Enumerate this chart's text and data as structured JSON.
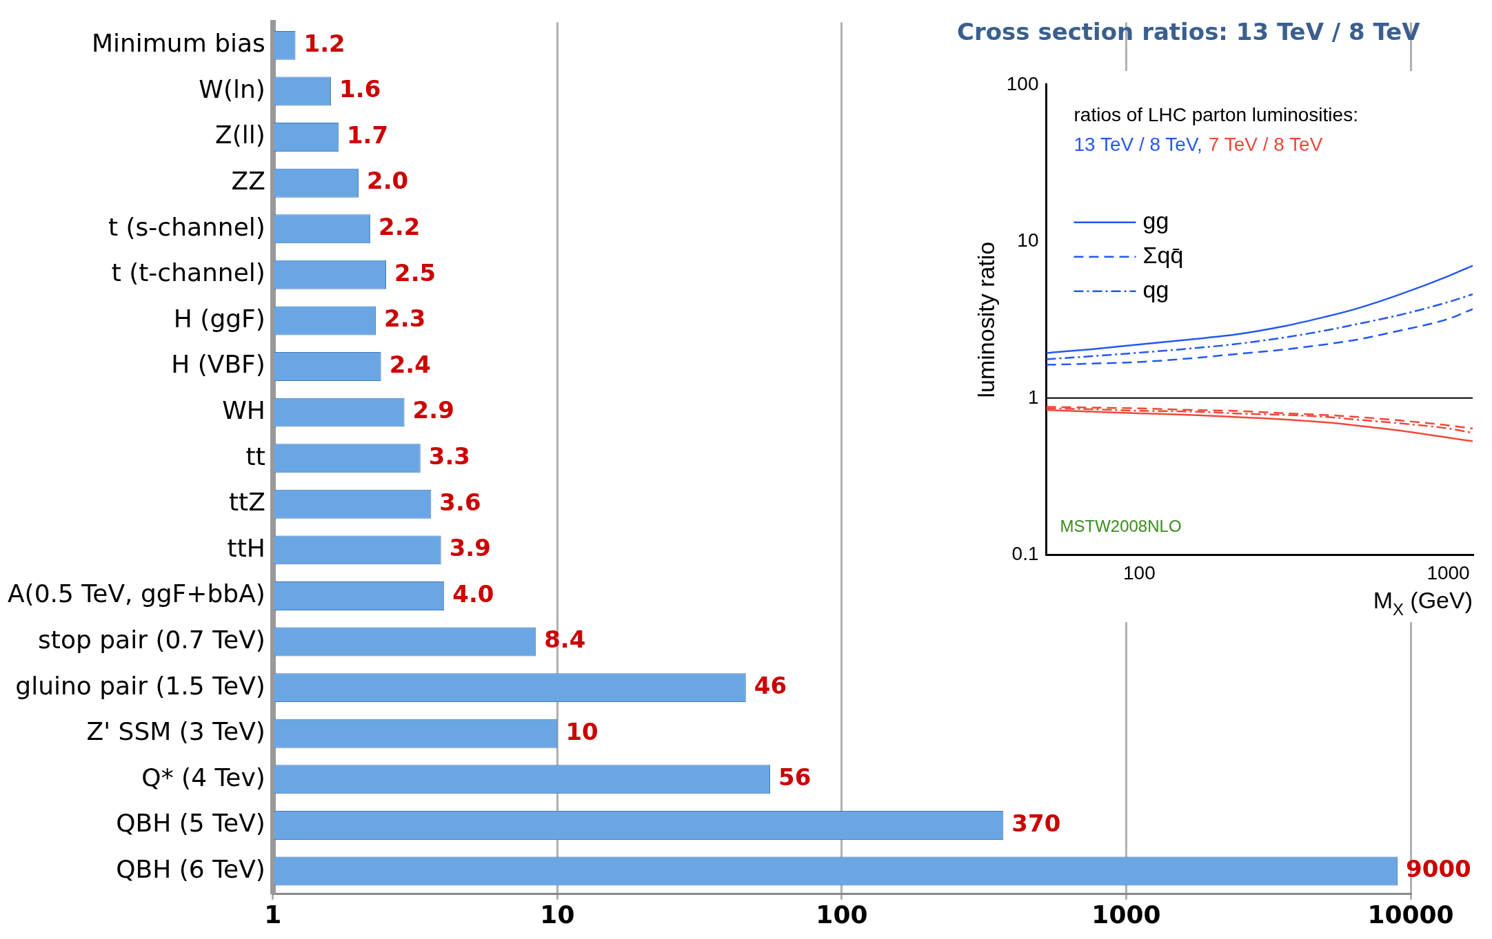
{
  "chart_data": [
    {
      "type": "bar",
      "orientation": "horizontal",
      "title": "Cross section ratios: 13 TeV / 8 TeV",
      "categories": [
        "Minimum bias",
        "W(ln)",
        "Z(ll)",
        "ZZ",
        "t (s-channel)",
        "t (t-channel)",
        "H (ggF)",
        "H (VBF)",
        "WH",
        "tt",
        "ttZ",
        "ttH",
        "A(0.5 TeV, ggF+bbA)",
        "stop pair (0.7 TeV)",
        "gluino pair (1.5 TeV)",
        "Z' SSM (3 TeV)",
        "Q* (4 Tev)",
        "QBH (5 TeV)",
        "QBH (6 TeV)"
      ],
      "values": [
        1.2,
        1.6,
        1.7,
        2.0,
        2.2,
        2.5,
        2.3,
        2.4,
        2.9,
        3.3,
        3.6,
        3.9,
        4.0,
        8.4,
        46,
        10,
        56,
        370,
        9000
      ],
      "value_labels": [
        "1.2",
        "1.6",
        "1.7",
        "2.0",
        "2.2",
        "2.5",
        "2.3",
        "2.4",
        "2.9",
        "3.3",
        "3.6",
        "3.9",
        "4.0",
        "8.4",
        "46",
        "10",
        "56",
        "370",
        "9000"
      ],
      "color": "#6aa6e4",
      "log": "x",
      "xlim": [
        1,
        10000
      ],
      "xticks": [
        1,
        10,
        100,
        1000,
        10000
      ],
      "grid": "x",
      "legend": false
    },
    {
      "type": "line",
      "xlabel": "M$_{X}$ (GeV)",
      "ylabel": "luminosity ratio",
      "log": "xy",
      "x": [
        50,
        70,
        100,
        150,
        200,
        300,
        400,
        500,
        700,
        1000,
        1200
      ],
      "xlim": [
        50,
        1200
      ],
      "xticks": [
        100,
        1000
      ],
      "ylim": [
        0.1,
        100
      ],
      "yticks": [
        0.1,
        1,
        10,
        100
      ],
      "series": [
        {
          "name": "gg",
          "color": "#2457f0",
          "line_style": "solid",
          "values": [
            1.94,
            2.05,
            2.2,
            2.38,
            2.53,
            2.9,
            3.3,
            3.7,
            4.6,
            6.0,
            7.0
          ]
        },
        {
          "name": "Σqq̄",
          "color": "#2457f0",
          "line_style": "dashed",
          "values": [
            1.63,
            1.66,
            1.7,
            1.8,
            1.9,
            2.05,
            2.2,
            2.35,
            2.7,
            3.2,
            3.7
          ]
        },
        {
          "name": "qg",
          "color": "#2457f0",
          "line_style": "dotted",
          "values": [
            1.77,
            1.85,
            1.95,
            2.08,
            2.2,
            2.45,
            2.7,
            2.95,
            3.4,
            4.1,
            4.6
          ]
        },
        {
          "color": "#f0483a",
          "line_style": "solid",
          "values": [
            0.84,
            0.82,
            0.8,
            0.78,
            0.76,
            0.73,
            0.7,
            0.67,
            0.62,
            0.56,
            0.53
          ]
        },
        {
          "color": "#f0483a",
          "line_style": "dashed",
          "values": [
            0.88,
            0.87,
            0.86,
            0.84,
            0.83,
            0.8,
            0.78,
            0.76,
            0.72,
            0.67,
            0.64
          ]
        },
        {
          "color": "#f0483a",
          "line_style": "dotted",
          "values": [
            0.86,
            0.85,
            0.83,
            0.82,
            0.8,
            0.78,
            0.76,
            0.73,
            0.69,
            0.64,
            0.6
          ]
        }
      ],
      "ref_lines": [
        {
          "axis": "y",
          "value": 1,
          "color": "#000000"
        }
      ],
      "annotations": [
        "ratios of LHC parton luminosities:",
        "13 TeV / 8 TeV,",
        "7 TeV / 8 TeV",
        "MSTW2008NLO"
      ],
      "legend": "top left",
      "grid": false,
      "marker": "none"
    }
  ]
}
